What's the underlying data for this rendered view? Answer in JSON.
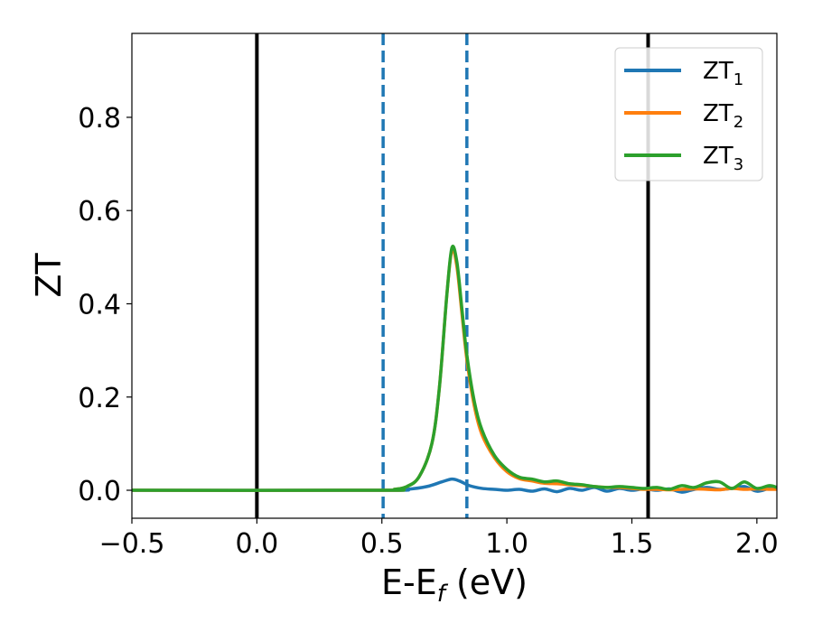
{
  "chart_data": {
    "type": "line",
    "title": "",
    "xlabel": "E-E",
    "xlabel_sub": "f",
    "xlabel_unit": " (eV)",
    "ylabel": "ZT",
    "xlim": [
      -0.5,
      2.08
    ],
    "ylim": [
      -0.06,
      0.98
    ],
    "xticks": [
      -0.5,
      0.0,
      0.5,
      1.0,
      1.5,
      2.0
    ],
    "xtick_labels": [
      "−0.5",
      "0.0",
      "0.5",
      "1.0",
      "1.5",
      "2.0"
    ],
    "yticks": [
      0.0,
      0.2,
      0.4,
      0.6,
      0.8
    ],
    "ytick_labels": [
      "0.0",
      "0.2",
      "0.4",
      "0.6",
      "0.8"
    ],
    "grid": false,
    "legend_position": "top-right",
    "vlines": [
      {
        "x": 0.0,
        "color": "#000000",
        "style": "solid"
      },
      {
        "x": 1.565,
        "color": "#000000",
        "style": "solid"
      },
      {
        "x": 0.505,
        "color": "#1f77b4",
        "style": "dashed"
      },
      {
        "x": 0.84,
        "color": "#1f77b4",
        "style": "dashed"
      }
    ],
    "series": [
      {
        "name": "ZT",
        "name_sub": "1",
        "color": "#1f77b4",
        "points": [
          [
            -0.5,
            0.0
          ],
          [
            0.5,
            0.0
          ],
          [
            0.6,
            0.002
          ],
          [
            0.68,
            0.008
          ],
          [
            0.74,
            0.018
          ],
          [
            0.78,
            0.024
          ],
          [
            0.81,
            0.02
          ],
          [
            0.85,
            0.01
          ],
          [
            0.9,
            0.004
          ],
          [
            0.95,
            0.002
          ],
          [
            1.0,
            0.0
          ],
          [
            1.05,
            0.002
          ],
          [
            1.1,
            -0.002
          ],
          [
            1.15,
            0.003
          ],
          [
            1.2,
            -0.003
          ],
          [
            1.25,
            0.004
          ],
          [
            1.3,
            0.0
          ],
          [
            1.35,
            0.006
          ],
          [
            1.4,
            -0.002
          ],
          [
            1.45,
            0.004
          ],
          [
            1.5,
            0.0
          ],
          [
            1.55,
            0.003
          ],
          [
            1.6,
            0.0
          ],
          [
            1.65,
            0.003
          ],
          [
            1.7,
            -0.004
          ],
          [
            1.75,
            0.002
          ],
          [
            1.8,
            0.006
          ],
          [
            1.85,
            0.002
          ],
          [
            1.9,
            0.004
          ],
          [
            1.95,
            0.008
          ],
          [
            2.0,
            -0.002
          ],
          [
            2.05,
            0.004
          ],
          [
            2.08,
            0.003
          ]
        ]
      },
      {
        "name": "ZT",
        "name_sub": "2",
        "color": "#ff7f0e",
        "points": [
          [
            -0.5,
            0.0
          ],
          [
            0.5,
            0.0
          ],
          [
            0.55,
            0.002
          ],
          [
            0.6,
            0.008
          ],
          [
            0.65,
            0.03
          ],
          [
            0.7,
            0.1
          ],
          [
            0.73,
            0.22
          ],
          [
            0.76,
            0.42
          ],
          [
            0.78,
            0.515
          ],
          [
            0.8,
            0.48
          ],
          [
            0.82,
            0.38
          ],
          [
            0.84,
            0.28
          ],
          [
            0.87,
            0.18
          ],
          [
            0.9,
            0.12
          ],
          [
            0.95,
            0.07
          ],
          [
            1.0,
            0.04
          ],
          [
            1.05,
            0.025
          ],
          [
            1.1,
            0.02
          ],
          [
            1.15,
            0.015
          ],
          [
            1.2,
            0.014
          ],
          [
            1.25,
            0.012
          ],
          [
            1.3,
            0.01
          ],
          [
            1.35,
            0.008
          ],
          [
            1.4,
            0.006
          ],
          [
            1.45,
            0.006
          ],
          [
            1.5,
            0.004
          ],
          [
            1.55,
            0.002
          ],
          [
            1.6,
            0.002
          ],
          [
            1.65,
            0.001
          ],
          [
            1.7,
            0.002
          ],
          [
            1.75,
            0.003
          ],
          [
            1.8,
            0.002
          ],
          [
            1.85,
            0.001
          ],
          [
            1.9,
            0.004
          ],
          [
            1.95,
            0.002
          ],
          [
            2.0,
            0.003
          ],
          [
            2.05,
            0.002
          ],
          [
            2.08,
            0.002
          ]
        ]
      },
      {
        "name": "ZT",
        "name_sub": "3",
        "color": "#2ca02c",
        "points": [
          [
            -0.5,
            0.0
          ],
          [
            0.5,
            0.0
          ],
          [
            0.55,
            0.002
          ],
          [
            0.6,
            0.008
          ],
          [
            0.65,
            0.03
          ],
          [
            0.7,
            0.1
          ],
          [
            0.73,
            0.22
          ],
          [
            0.76,
            0.42
          ],
          [
            0.78,
            0.52
          ],
          [
            0.8,
            0.49
          ],
          [
            0.82,
            0.39
          ],
          [
            0.84,
            0.29
          ],
          [
            0.87,
            0.19
          ],
          [
            0.9,
            0.13
          ],
          [
            0.95,
            0.075
          ],
          [
            1.0,
            0.045
          ],
          [
            1.05,
            0.028
          ],
          [
            1.1,
            0.024
          ],
          [
            1.15,
            0.018
          ],
          [
            1.2,
            0.02
          ],
          [
            1.25,
            0.014
          ],
          [
            1.3,
            0.012
          ],
          [
            1.35,
            0.008
          ],
          [
            1.4,
            0.006
          ],
          [
            1.45,
            0.008
          ],
          [
            1.5,
            0.006
          ],
          [
            1.55,
            0.004
          ],
          [
            1.6,
            0.006
          ],
          [
            1.65,
            0.002
          ],
          [
            1.7,
            0.01
          ],
          [
            1.75,
            0.006
          ],
          [
            1.8,
            0.016
          ],
          [
            1.85,
            0.018
          ],
          [
            1.9,
            0.004
          ],
          [
            1.95,
            0.018
          ],
          [
            2.0,
            0.004
          ],
          [
            2.05,
            0.01
          ],
          [
            2.08,
            0.006
          ]
        ]
      }
    ]
  }
}
